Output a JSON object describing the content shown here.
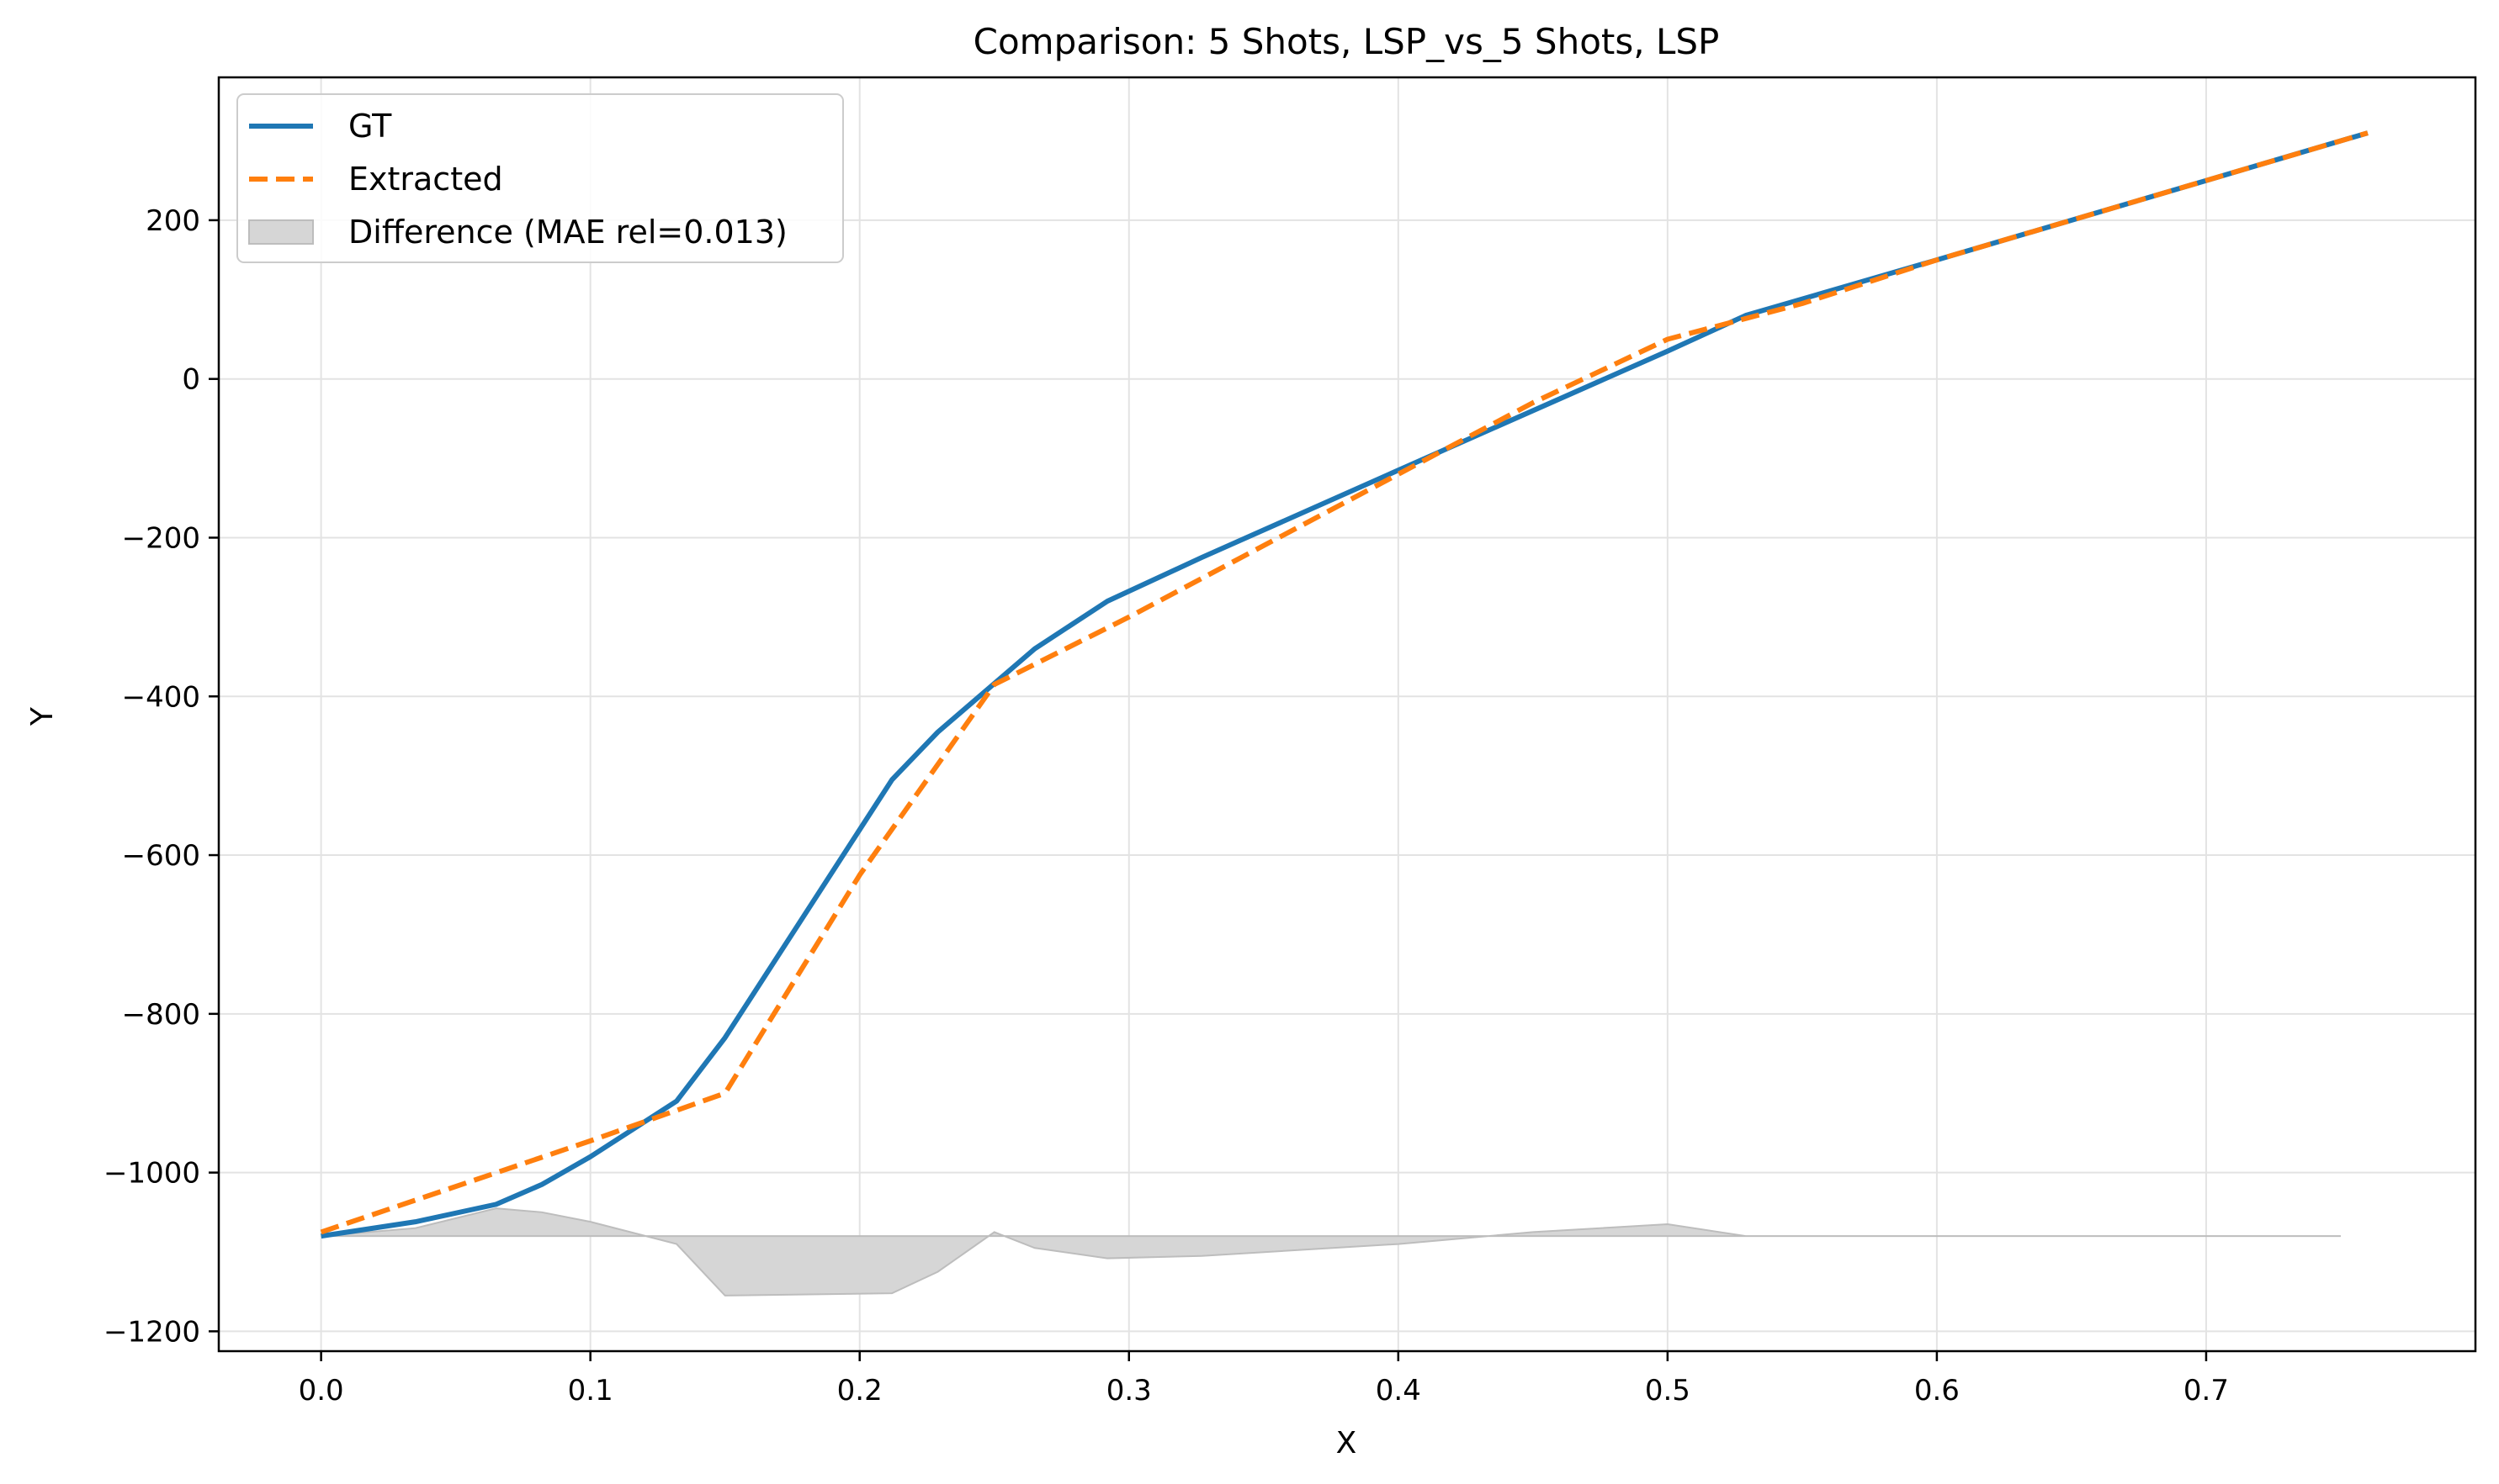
{
  "chart_data": {
    "type": "line",
    "title": "Comparison: 5 Shots, LSP_vs_5 Shots, LSP",
    "xlabel": "X",
    "ylabel": "Y",
    "xlim": [
      -0.038,
      0.8
    ],
    "ylim": [
      -1225,
      380
    ],
    "xticks": [
      0.0,
      0.1,
      0.2,
      0.3,
      0.4,
      0.5,
      0.6,
      0.7
    ],
    "xtick_labels": [
      "0.0",
      "0.1",
      "0.2",
      "0.3",
      "0.4",
      "0.5",
      "0.6",
      "0.7"
    ],
    "yticks": [
      200,
      0,
      -200,
      -400,
      -600,
      -800,
      -1000,
      -1200
    ],
    "ytick_labels": [
      "200",
      "0",
      "−200",
      "−400",
      "−600",
      "−800",
      "−1000",
      "−1200"
    ],
    "grid": true,
    "legend_position": "top-left",
    "series": [
      {
        "name": "GT",
        "color": "#1f77b4",
        "style": "solid",
        "x": [
          0.0,
          0.035,
          0.065,
          0.082,
          0.1,
          0.132,
          0.15,
          0.212,
          0.229,
          0.265,
          0.292,
          0.327,
          0.4,
          0.5,
          0.529,
          0.6,
          0.7,
          0.76
        ],
        "y": [
          -1080,
          -1062,
          -1040,
          -1015,
          -980,
          -910,
          -830,
          -505,
          -445,
          -340,
          -280,
          -225,
          -115,
          35,
          80,
          150,
          250,
          310
        ]
      },
      {
        "name": "Extracted",
        "color": "#ff7f0e",
        "style": "dashed",
        "x": [
          0.0,
          0.1,
          0.15,
          0.2,
          0.25,
          0.3,
          0.4,
          0.45,
          0.5,
          0.55,
          0.6,
          0.7,
          0.76
        ],
        "y": [
          -1075,
          -960,
          -900,
          -625,
          -385,
          -300,
          -120,
          -30,
          50,
          95,
          150,
          250,
          310
        ]
      },
      {
        "name": "Difference (MAE rel=0.013)",
        "color": "#bdbdbd",
        "style": "fill",
        "baseline": -1080,
        "x": [
          0.0,
          0.035,
          0.065,
          0.082,
          0.1,
          0.132,
          0.15,
          0.212,
          0.229,
          0.25,
          0.265,
          0.292,
          0.327,
          0.4,
          0.45,
          0.5,
          0.529,
          0.6,
          0.7,
          0.75
        ],
        "y": [
          -1080,
          -1070,
          -1045,
          -1050,
          -1062,
          -1090,
          -1155,
          -1152,
          -1125,
          -1075,
          -1095,
          -1108,
          -1105,
          -1090,
          -1075,
          -1065,
          -1080,
          -1080,
          -1080,
          -1080
        ]
      }
    ]
  }
}
